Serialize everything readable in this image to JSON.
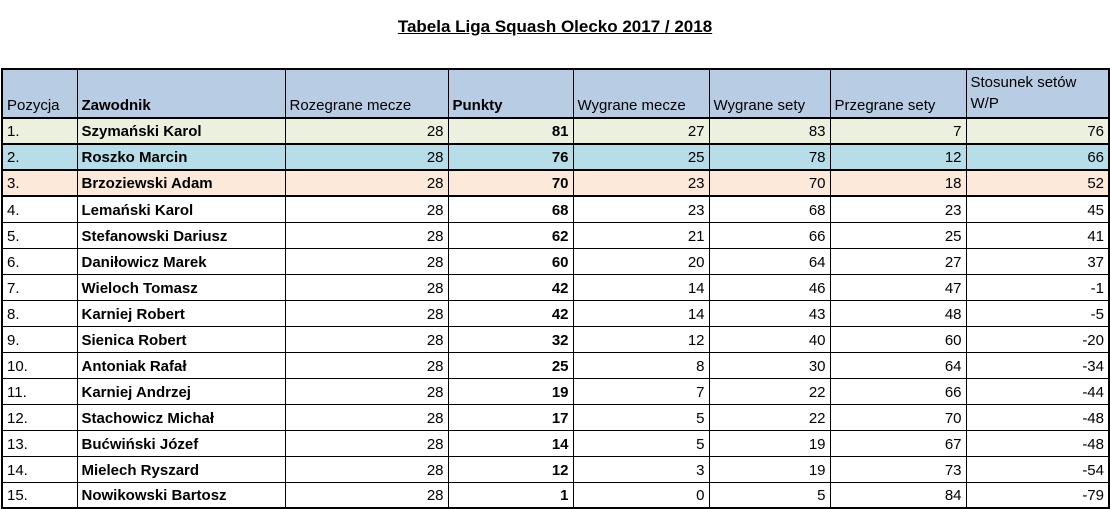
{
  "title": "Tabela Liga Squash Olecko 2017 / 2018",
  "colors": {
    "header_bg": "#b8cce4",
    "highlight_first": "#ebf1de",
    "highlight_second": "#b7dee8",
    "highlight_third": "#fde9d9",
    "border": "#000000"
  },
  "table": {
    "columns": [
      {
        "label": "Pozycja"
      },
      {
        "label": "Zawodnik"
      },
      {
        "label": "Rozegrane mecze"
      },
      {
        "label": "Punkty"
      },
      {
        "label": "Wygrane mecze"
      },
      {
        "label": "Wygrane sety"
      },
      {
        "label": "Przegrane sety"
      },
      {
        "label": "Stosunek setów W/P"
      }
    ],
    "rows": [
      {
        "pozycja": "1.",
        "zawodnik": "Szymański Karol",
        "rozegrane_mecze": 28,
        "punkty": 81,
        "wygrane_mecze": 27,
        "wygrane_sety": 83,
        "przegrane_sety": 7,
        "stosunek_setow": 76,
        "highlight": "first"
      },
      {
        "pozycja": "2.",
        "zawodnik": "Roszko Marcin",
        "rozegrane_mecze": 28,
        "punkty": 76,
        "wygrane_mecze": 25,
        "wygrane_sety": 78,
        "przegrane_sety": 12,
        "stosunek_setow": 66,
        "highlight": "second"
      },
      {
        "pozycja": "3.",
        "zawodnik": "Brzoziewski Adam",
        "rozegrane_mecze": 28,
        "punkty": 70,
        "wygrane_mecze": 23,
        "wygrane_sety": 70,
        "przegrane_sety": 18,
        "stosunek_setow": 52,
        "highlight": "third"
      },
      {
        "pozycja": "4.",
        "zawodnik": "Lemański Karol",
        "rozegrane_mecze": 28,
        "punkty": 68,
        "wygrane_mecze": 23,
        "wygrane_sety": 68,
        "przegrane_sety": 23,
        "stosunek_setow": 45,
        "highlight": null
      },
      {
        "pozycja": "5.",
        "zawodnik": "Stefanowski Dariusz",
        "rozegrane_mecze": 28,
        "punkty": 62,
        "wygrane_mecze": 21,
        "wygrane_sety": 66,
        "przegrane_sety": 25,
        "stosunek_setow": 41,
        "highlight": null
      },
      {
        "pozycja": "6.",
        "zawodnik": "Daniłowicz Marek",
        "rozegrane_mecze": 28,
        "punkty": 60,
        "wygrane_mecze": 20,
        "wygrane_sety": 64,
        "przegrane_sety": 27,
        "stosunek_setow": 37,
        "highlight": null
      },
      {
        "pozycja": "7.",
        "zawodnik": "Wieloch Tomasz",
        "rozegrane_mecze": 28,
        "punkty": 42,
        "wygrane_mecze": 14,
        "wygrane_sety": 46,
        "przegrane_sety": 47,
        "stosunek_setow": -1,
        "highlight": null
      },
      {
        "pozycja": "8.",
        "zawodnik": "Karniej Robert",
        "rozegrane_mecze": 28,
        "punkty": 42,
        "wygrane_mecze": 14,
        "wygrane_sety": 43,
        "przegrane_sety": 48,
        "stosunek_setow": -5,
        "highlight": null
      },
      {
        "pozycja": "9.",
        "zawodnik": "Sienica Robert",
        "rozegrane_mecze": 28,
        "punkty": 32,
        "wygrane_mecze": 12,
        "wygrane_sety": 40,
        "przegrane_sety": 60,
        "stosunek_setow": -20,
        "highlight": null
      },
      {
        "pozycja": "10.",
        "zawodnik": "Antoniak Rafał",
        "rozegrane_mecze": 28,
        "punkty": 25,
        "wygrane_mecze": 8,
        "wygrane_sety": 30,
        "przegrane_sety": 64,
        "stosunek_setow": -34,
        "highlight": null
      },
      {
        "pozycja": "11.",
        "zawodnik": "Karniej Andrzej",
        "rozegrane_mecze": 28,
        "punkty": 19,
        "wygrane_mecze": 7,
        "wygrane_sety": 22,
        "przegrane_sety": 66,
        "stosunek_setow": -44,
        "highlight": null
      },
      {
        "pozycja": "12.",
        "zawodnik": "Stachowicz Michał",
        "rozegrane_mecze": 28,
        "punkty": 17,
        "wygrane_mecze": 5,
        "wygrane_sety": 22,
        "przegrane_sety": 70,
        "stosunek_setow": -48,
        "highlight": null
      },
      {
        "pozycja": "13.",
        "zawodnik": "Bućwiński Józef",
        "rozegrane_mecze": 28,
        "punkty": 14,
        "wygrane_mecze": 5,
        "wygrane_sety": 19,
        "przegrane_sety": 67,
        "stosunek_setow": -48,
        "highlight": null
      },
      {
        "pozycja": "14.",
        "zawodnik": "Mielech Ryszard",
        "rozegrane_mecze": 28,
        "punkty": 12,
        "wygrane_mecze": 3,
        "wygrane_sety": 19,
        "przegrane_sety": 73,
        "stosunek_setow": -54,
        "highlight": null
      },
      {
        "pozycja": "15.",
        "zawodnik": "Nowikowski Bartosz",
        "rozegrane_mecze": 28,
        "punkty": 1,
        "wygrane_mecze": 0,
        "wygrane_sety": 5,
        "przegrane_sety": 84,
        "stosunek_setow": -79,
        "highlight": null
      }
    ]
  }
}
